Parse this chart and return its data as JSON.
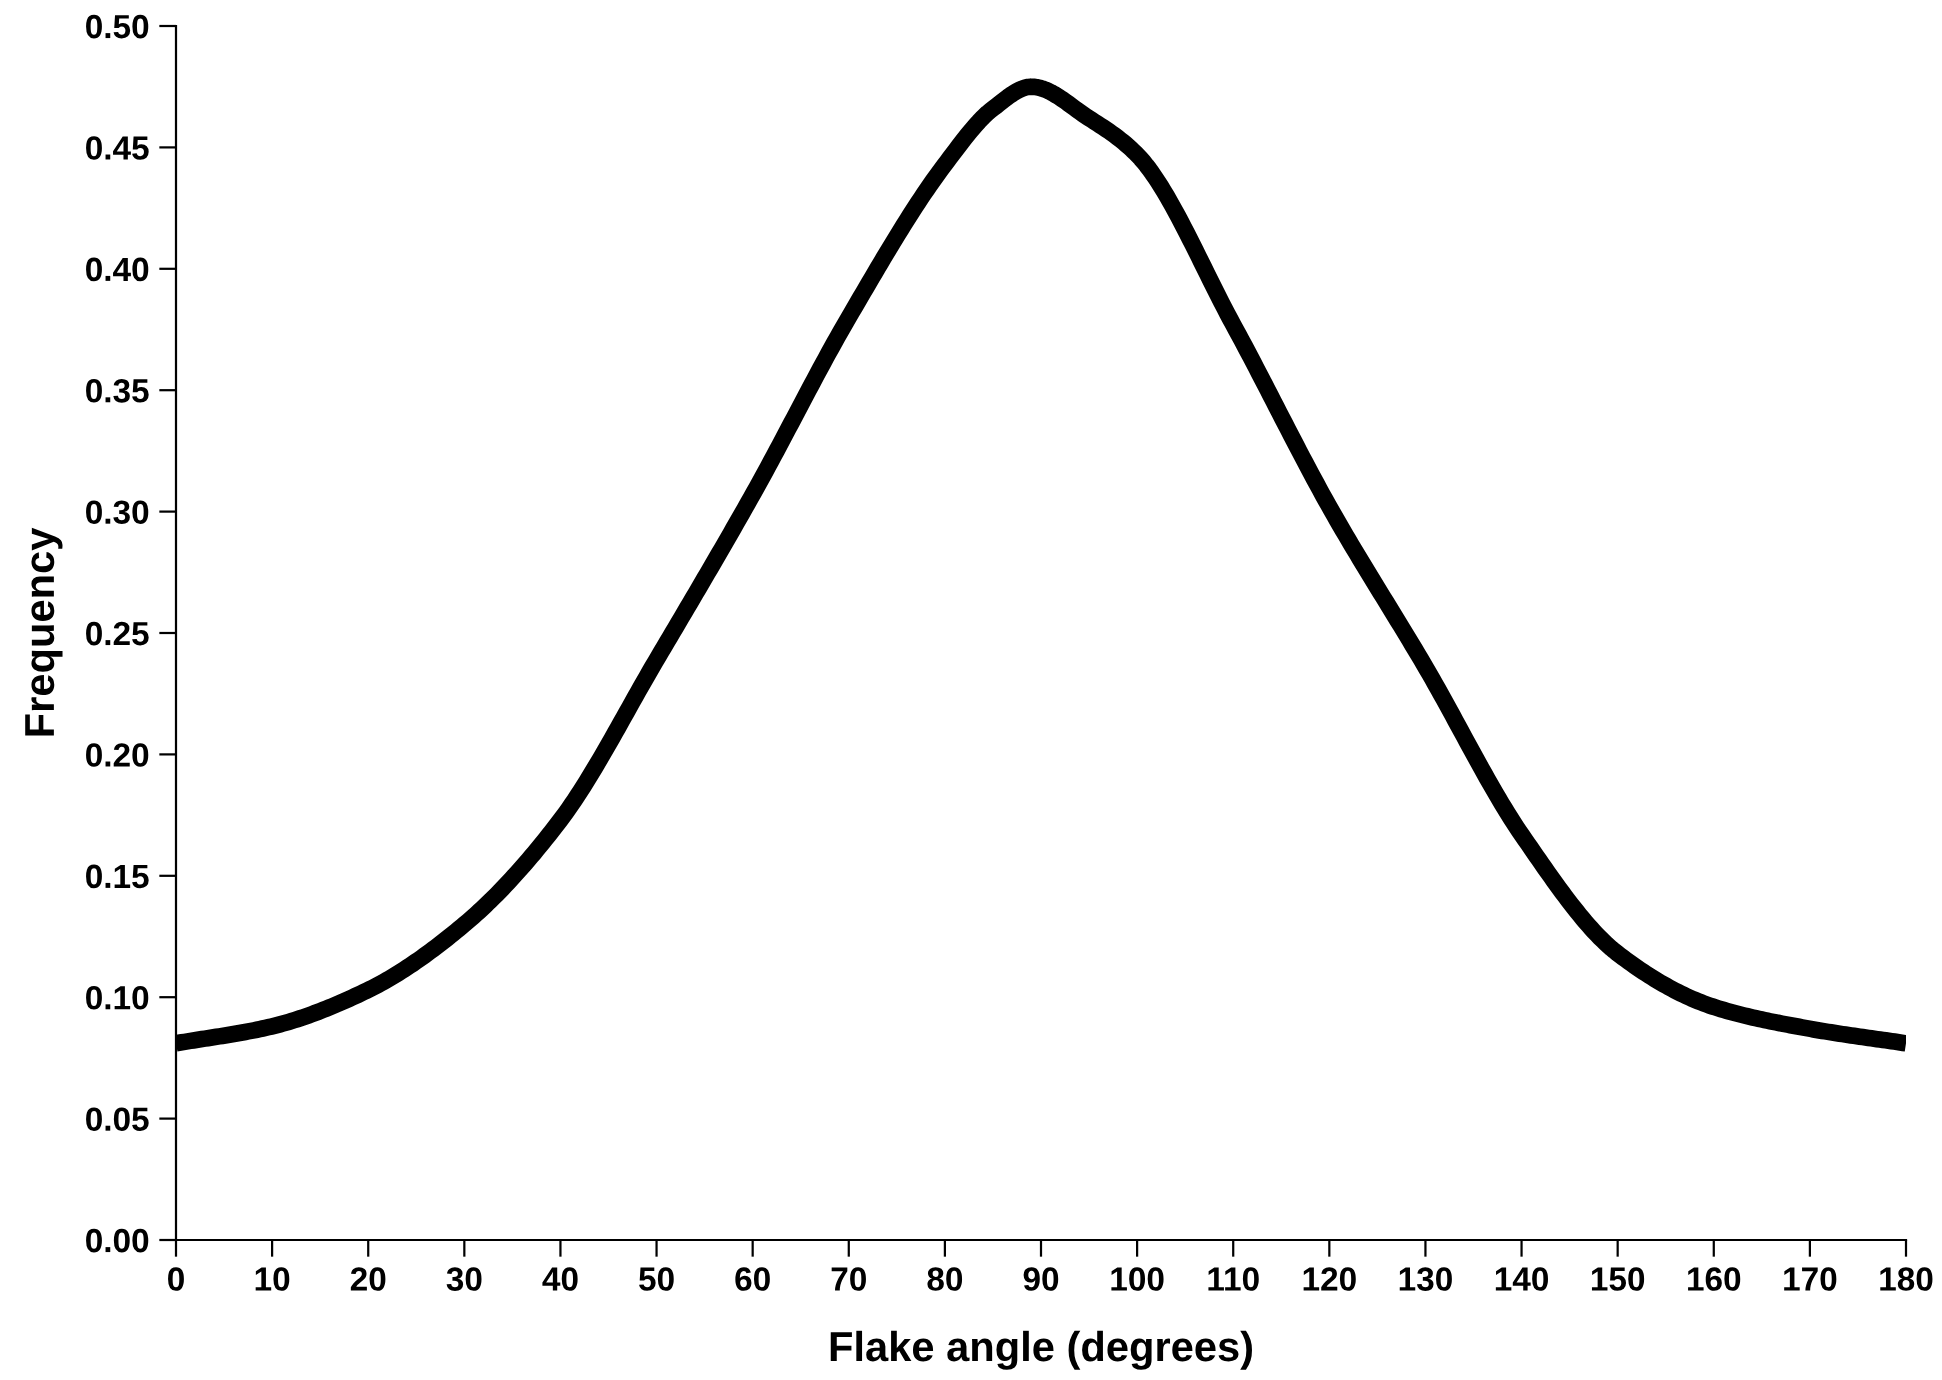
{
  "chart_data": {
    "type": "line",
    "xlabel": "Flake angle (degrees)",
    "ylabel": "Frequency",
    "x": [
      0,
      10,
      20,
      30,
      40,
      50,
      60,
      70,
      80,
      85,
      89,
      95,
      100,
      110,
      120,
      130,
      140,
      150,
      160,
      170,
      180
    ],
    "series": [
      {
        "color": "#000000",
        "values": [
          0.081,
          0.088,
          0.103,
          0.13,
          0.173,
          0.239,
          0.307,
          0.38,
          0.443,
          0.466,
          0.475,
          0.462,
          0.447,
          0.377,
          0.302,
          0.236,
          0.167,
          0.118,
          0.096,
          0.087,
          0.081
        ]
      }
    ],
    "xlim": [
      0,
      180
    ],
    "xticks": [
      0,
      10,
      20,
      30,
      40,
      50,
      60,
      70,
      80,
      90,
      100,
      110,
      120,
      130,
      140,
      150,
      160,
      170,
      180
    ],
    "ylim": [
      0,
      0.5
    ],
    "yticks": [
      {
        "value": 0,
        "label": "0.00"
      },
      {
        "value": 0.05,
        "label": "0.05"
      },
      {
        "value": 0.1,
        "label": "0.10"
      },
      {
        "value": 0.15,
        "label": "0.15"
      },
      {
        "value": 0.2,
        "label": "0.20"
      },
      {
        "value": 0.25,
        "label": "0.25"
      },
      {
        "value": 0.3,
        "label": "0.30"
      },
      {
        "value": 0.35,
        "label": "0.35"
      },
      {
        "value": 0.4,
        "label": "0.40"
      },
      {
        "value": 0.45,
        "label": "0.45"
      },
      {
        "value": 0.5,
        "label": "0.50"
      }
    ],
    "grid": false,
    "legend": false,
    "marker": "none",
    "line_style": "solid"
  }
}
